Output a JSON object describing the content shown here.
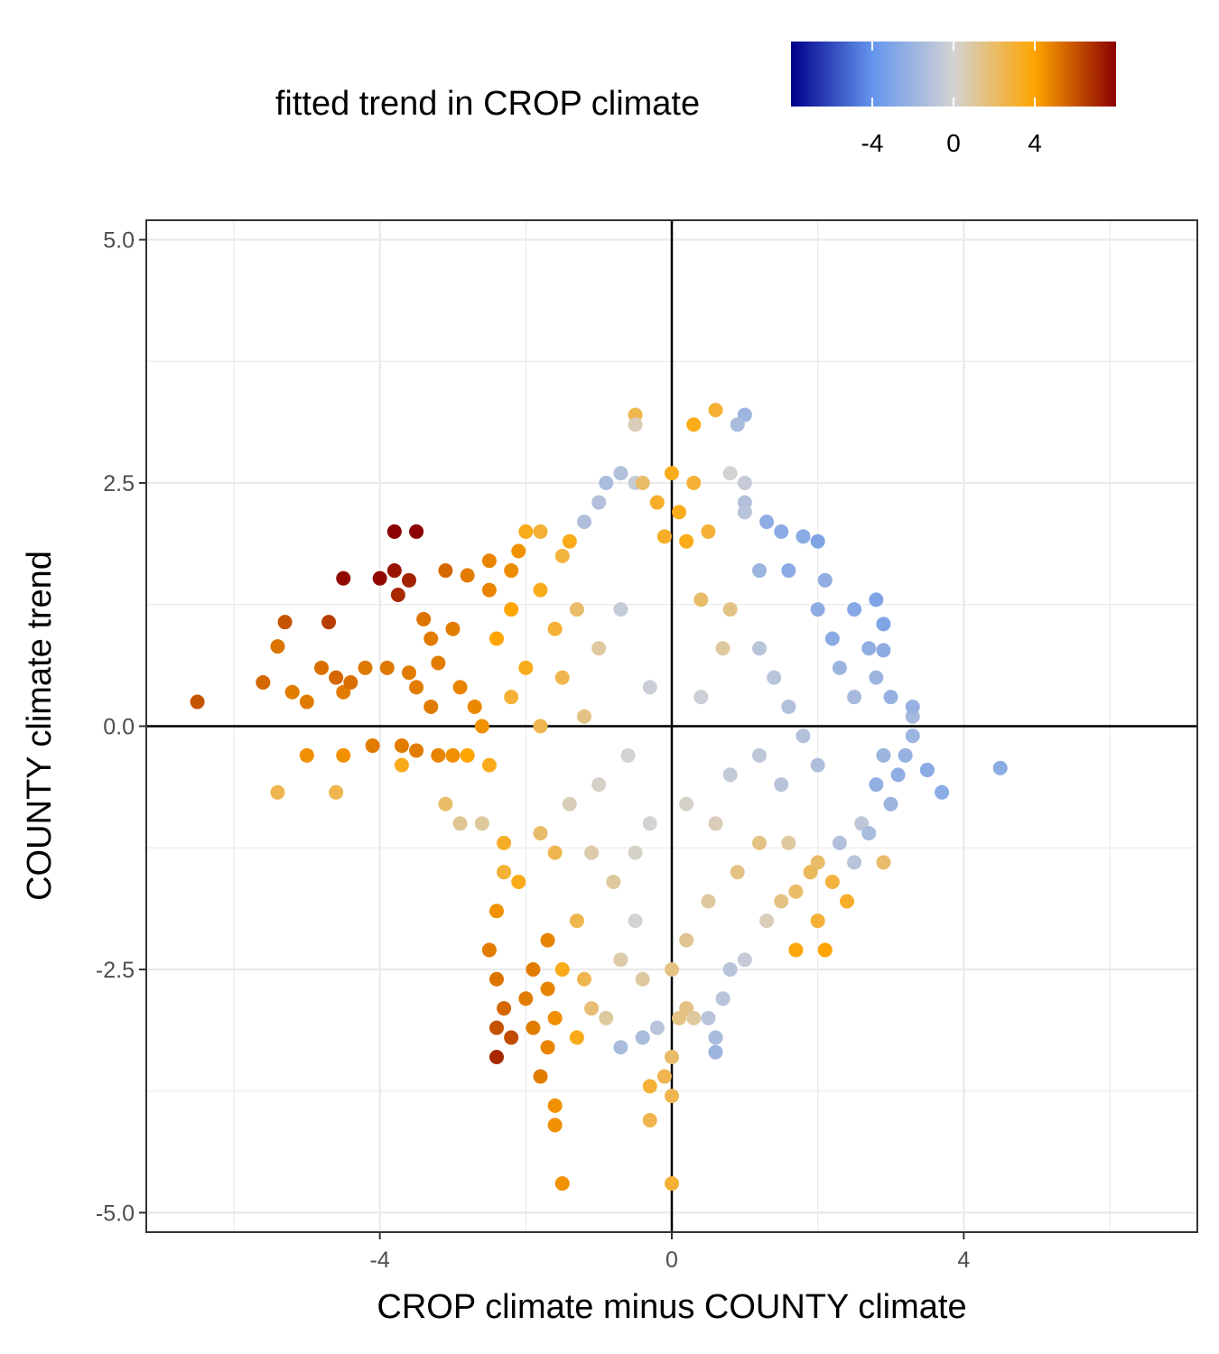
{
  "chart_data": {
    "type": "scatter",
    "title": "",
    "xlabel": "CROP climate minus COUNTY climate",
    "ylabel": "COUNTY climate trend",
    "xlim": [
      -7.2,
      7.2
    ],
    "ylim": [
      -5.2,
      5.2
    ],
    "x_ticks": [
      -4,
      0,
      4
    ],
    "y_ticks": [
      5.0,
      2.5,
      0.0,
      -2.5,
      -5.0
    ],
    "x_tick_labels": [
      "-4",
      "0",
      "4"
    ],
    "y_tick_labels": [
      "5.0",
      "2.5",
      "0.0",
      "-2.5",
      "-5.0"
    ],
    "grid": true,
    "reference_lines": {
      "x": 0,
      "y": 0
    },
    "color_legend": {
      "title": "fitted trend in CROP climate",
      "placement": "top",
      "range": [
        -8,
        8
      ],
      "ticks": [
        -4,
        0,
        4
      ],
      "tick_labels": [
        "-4",
        "0",
        "4"
      ],
      "colors": [
        "#00008b",
        "#6495ed",
        "#d3d3d3",
        "#ffa500",
        "#8b0000"
      ]
    },
    "series": [
      {
        "points": [
          [
            -6.5,
            0.25,
            6.0
          ],
          [
            -5.6,
            0.45,
            5.5
          ],
          [
            -5.4,
            0.82,
            5.2
          ],
          [
            -5.2,
            0.35,
            5.0
          ],
          [
            -5.0,
            0.25,
            5.0
          ],
          [
            -5.3,
            1.07,
            6.0
          ],
          [
            -4.7,
            1.07,
            6.5
          ],
          [
            -4.5,
            1.52,
            7.8
          ],
          [
            -4.0,
            1.52,
            7.8
          ],
          [
            -3.8,
            2.0,
            8.0
          ],
          [
            -3.5,
            2.0,
            8.0
          ],
          [
            -3.8,
            1.6,
            7.5
          ],
          [
            -3.6,
            1.5,
            7.2
          ],
          [
            -3.75,
            1.35,
            7.0
          ],
          [
            -4.6,
            0.5,
            5.5
          ],
          [
            -4.8,
            0.6,
            5.3
          ],
          [
            -4.5,
            0.35,
            5.0
          ],
          [
            -4.2,
            0.6,
            5.1
          ],
          [
            -3.9,
            0.6,
            5.1
          ],
          [
            -3.6,
            0.55,
            5.0
          ],
          [
            -4.1,
            -0.2,
            5.0
          ],
          [
            -3.7,
            -0.2,
            5.0
          ],
          [
            -3.5,
            -0.25,
            5.0
          ],
          [
            -3.2,
            -0.3,
            4.8
          ],
          [
            -3.0,
            -0.3,
            4.5
          ],
          [
            -5.0,
            -0.3,
            4.5
          ],
          [
            -4.5,
            -0.3,
            4.5
          ],
          [
            -5.4,
            -0.68,
            2.5
          ],
          [
            -4.6,
            -0.68,
            2.5
          ],
          [
            -3.7,
            -0.4,
            3.5
          ],
          [
            -3.3,
            0.2,
            5.0
          ],
          [
            -3.5,
            0.4,
            5.0
          ],
          [
            -3.3,
            0.9,
            5.0
          ],
          [
            -3.0,
            1.0,
            5.0
          ],
          [
            -3.1,
            1.6,
            5.5
          ],
          [
            -2.8,
            1.55,
            5.0
          ],
          [
            -2.5,
            1.4,
            4.8
          ],
          [
            -2.5,
            1.7,
            4.8
          ],
          [
            -2.2,
            1.6,
            4.6
          ],
          [
            -2.1,
            1.8,
            4.5
          ],
          [
            -2.0,
            2.0,
            3.5
          ],
          [
            -1.8,
            2.0,
            3.0
          ],
          [
            -1.5,
            1.75,
            2.8
          ],
          [
            -3.4,
            1.1,
            5.2
          ],
          [
            -3.2,
            0.65,
            5.0
          ],
          [
            -2.9,
            0.4,
            4.8
          ],
          [
            -2.7,
            0.2,
            4.7
          ],
          [
            -2.6,
            0.0,
            4.5
          ],
          [
            -2.8,
            -0.3,
            4.0
          ],
          [
            -2.5,
            -0.4,
            3.5
          ],
          [
            -3.1,
            -0.8,
            2.0
          ],
          [
            -2.9,
            -1.0,
            1.2
          ],
          [
            -2.6,
            -1.0,
            1.0
          ],
          [
            -2.3,
            -1.5,
            3.0
          ],
          [
            -2.3,
            -1.2,
            3.2
          ],
          [
            -1.8,
            -1.1,
            2.0
          ],
          [
            -1.6,
            -1.3,
            2.5
          ],
          [
            -2.1,
            -1.6,
            3.5
          ],
          [
            -2.4,
            -1.9,
            4.5
          ],
          [
            -2.5,
            -2.3,
            5.0
          ],
          [
            -2.4,
            -2.6,
            5.2
          ],
          [
            -2.3,
            -2.9,
            5.5
          ],
          [
            -2.4,
            -3.1,
            6.0
          ],
          [
            -2.2,
            -3.2,
            6.2
          ],
          [
            -2.4,
            -3.4,
            7.0
          ],
          [
            -2.0,
            -2.8,
            5.0
          ],
          [
            -1.9,
            -2.5,
            5.0
          ],
          [
            -1.7,
            -2.2,
            4.8
          ],
          [
            -1.7,
            -2.7,
            4.8
          ],
          [
            -1.6,
            -3.0,
            4.5
          ],
          [
            -1.9,
            -3.1,
            5.0
          ],
          [
            -1.7,
            -3.3,
            4.8
          ],
          [
            -1.8,
            -3.6,
            5.0
          ],
          [
            -1.6,
            -3.9,
            4.5
          ],
          [
            -1.6,
            -4.1,
            4.5
          ],
          [
            -1.5,
            -4.7,
            4.5
          ],
          [
            -1.3,
            -3.2,
            3.5
          ],
          [
            -1.1,
            -2.9,
            1.8
          ],
          [
            -0.9,
            -3.0,
            1.0
          ],
          [
            -0.5,
            -2.0,
            0.0
          ],
          [
            -0.7,
            -3.3,
            -1.5
          ],
          [
            -0.4,
            -3.2,
            -1.5
          ],
          [
            -0.2,
            -3.1,
            -1.0
          ],
          [
            -0.1,
            -3.6,
            2.5
          ],
          [
            -0.3,
            -3.7,
            3.0
          ],
          [
            0.0,
            -3.4,
            2.0
          ],
          [
            0.0,
            -3.8,
            2.5
          ],
          [
            -0.3,
            -4.05,
            2.5
          ],
          [
            0.0,
            -4.7,
            3.0
          ],
          [
            0.1,
            -3.0,
            1.5
          ],
          [
            0.2,
            -2.9,
            1.5
          ],
          [
            0.3,
            -3.0,
            1.0
          ],
          [
            0.5,
            -3.0,
            -1.0
          ],
          [
            0.6,
            -3.2,
            -1.5
          ],
          [
            0.6,
            -3.35,
            -2.0
          ],
          [
            0.7,
            -2.8,
            -1.0
          ],
          [
            0.8,
            -2.5,
            -1.0
          ],
          [
            1.0,
            -2.4,
            -0.5
          ],
          [
            1.3,
            -2.0,
            0.5
          ],
          [
            1.5,
            -1.8,
            1.5
          ],
          [
            1.7,
            -1.7,
            2.0
          ],
          [
            1.9,
            -1.5,
            2.3
          ],
          [
            2.0,
            -1.4,
            2.0
          ],
          [
            2.2,
            -1.6,
            2.8
          ],
          [
            2.4,
            -1.8,
            3.2
          ],
          [
            1.7,
            -2.3,
            3.8
          ],
          [
            2.1,
            -2.3,
            4.0
          ],
          [
            2.0,
            -2.0,
            3.0
          ],
          [
            2.6,
            -1.0,
            -0.8
          ],
          [
            2.9,
            -1.4,
            2.0
          ],
          [
            2.5,
            -1.4,
            -1.0
          ],
          [
            2.3,
            -1.2,
            -1.2
          ],
          [
            2.7,
            -1.1,
            -1.5
          ],
          [
            3.0,
            -0.8,
            -2.0
          ],
          [
            2.8,
            -0.6,
            -2.3
          ],
          [
            3.1,
            -0.5,
            -2.4
          ],
          [
            3.2,
            -0.3,
            -2.2
          ],
          [
            3.5,
            -0.45,
            -2.5
          ],
          [
            3.3,
            -0.1,
            -2.0
          ],
          [
            3.3,
            0.1,
            -1.6
          ],
          [
            3.3,
            0.2,
            -2.2
          ],
          [
            3.0,
            0.3,
            -2.2
          ],
          [
            2.8,
            0.5,
            -2.0
          ],
          [
            2.5,
            0.3,
            -1.6
          ],
          [
            2.9,
            0.78,
            -2.5
          ],
          [
            2.7,
            0.8,
            -2.4
          ],
          [
            2.3,
            0.6,
            -2.0
          ],
          [
            2.5,
            1.2,
            -2.8
          ],
          [
            2.9,
            1.05,
            -3.0
          ],
          [
            2.8,
            1.3,
            -3.0
          ],
          [
            2.2,
            0.9,
            -2.6
          ],
          [
            2.0,
            1.2,
            -2.5
          ],
          [
            2.1,
            1.5,
            -2.4
          ],
          [
            2.0,
            1.9,
            -3.0
          ],
          [
            1.8,
            1.95,
            -2.6
          ],
          [
            1.6,
            1.6,
            -2.6
          ],
          [
            1.5,
            2.0,
            -2.6
          ],
          [
            1.3,
            2.1,
            -2.5
          ],
          [
            1.2,
            1.6,
            -2.0
          ],
          [
            1.0,
            2.3,
            -1.2
          ],
          [
            1.0,
            2.2,
            -1.0
          ],
          [
            1.0,
            2.5,
            -0.5
          ],
          [
            1.0,
            3.2,
            -2.0
          ],
          [
            0.9,
            3.1,
            -1.5
          ],
          [
            0.6,
            3.25,
            3.0
          ],
          [
            0.3,
            3.1,
            3.5
          ],
          [
            -0.5,
            3.2,
            2.5
          ],
          [
            -0.5,
            3.1,
            0.5
          ],
          [
            -0.9,
            2.5,
            -1.5
          ],
          [
            -0.7,
            2.6,
            -1.2
          ],
          [
            -0.5,
            2.5,
            -0.5
          ],
          [
            -0.4,
            2.5,
            2.0
          ],
          [
            0.0,
            2.6,
            3.5
          ],
          [
            0.3,
            2.5,
            3.0
          ],
          [
            0.8,
            2.6,
            0.0
          ],
          [
            -1.0,
            2.3,
            -1.2
          ],
          [
            -1.2,
            2.1,
            -1.3
          ],
          [
            -0.2,
            2.3,
            3.2
          ],
          [
            0.1,
            2.2,
            3.5
          ],
          [
            0.5,
            2.0,
            3.0
          ],
          [
            0.2,
            1.9,
            3.5
          ],
          [
            -0.1,
            1.95,
            3.3
          ],
          [
            -1.4,
            1.9,
            3.5
          ],
          [
            -4.4,
            0.45,
            5.3
          ],
          [
            4.5,
            -0.43,
            -2.6
          ],
          [
            3.7,
            -0.68,
            -2.6
          ],
          [
            3.5,
            -0.45,
            -2.6
          ],
          [
            2.9,
            -0.3,
            -2.0
          ],
          [
            -1.3,
            1.2,
            2.0
          ],
          [
            -2.2,
            1.2,
            4.0
          ],
          [
            -1.8,
            1.4,
            3.5
          ],
          [
            -2.4,
            0.9,
            4.0
          ],
          [
            -2.0,
            0.6,
            3.5
          ],
          [
            -1.6,
            1.0,
            3.0
          ],
          [
            -2.2,
            0.3,
            3.0
          ],
          [
            -1.5,
            0.5,
            2.5
          ],
          [
            -1.0,
            0.8,
            1.0
          ],
          [
            -1.8,
            0.0,
            2.5
          ],
          [
            -1.2,
            0.1,
            1.5
          ],
          [
            -0.7,
            1.2,
            -0.5
          ],
          [
            0.4,
            1.3,
            2.0
          ],
          [
            0.8,
            1.2,
            1.5
          ],
          [
            0.7,
            0.8,
            1.0
          ],
          [
            1.2,
            0.8,
            -1.0
          ],
          [
            1.4,
            0.5,
            -1.0
          ],
          [
            1.6,
            0.2,
            -1.2
          ],
          [
            1.8,
            -0.1,
            -1.2
          ],
          [
            2.0,
            -0.4,
            -1.3
          ],
          [
            1.5,
            -0.6,
            -1.0
          ],
          [
            1.2,
            -0.3,
            -0.8
          ],
          [
            0.8,
            -0.5,
            -0.6
          ],
          [
            0.4,
            0.3,
            -0.3
          ],
          [
            -0.3,
            0.4,
            -0.4
          ],
          [
            -0.6,
            -0.3,
            0.0
          ],
          [
            -1.0,
            -0.6,
            0.2
          ],
          [
            -1.4,
            -0.8,
            0.5
          ],
          [
            -1.1,
            -1.3,
            0.8
          ],
          [
            -0.8,
            -1.6,
            1.0
          ],
          [
            -1.3,
            -2.0,
            2.5
          ],
          [
            -1.5,
            -2.5,
            3.5
          ],
          [
            -1.2,
            -2.6,
            2.5
          ],
          [
            -0.7,
            -2.4,
            0.8
          ],
          [
            -0.4,
            -2.6,
            1.0
          ],
          [
            0.0,
            -2.5,
            1.5
          ],
          [
            0.2,
            -2.2,
            1.2
          ],
          [
            0.5,
            -1.8,
            1.0
          ],
          [
            0.9,
            -1.5,
            1.5
          ],
          [
            1.2,
            -1.2,
            1.5
          ],
          [
            1.6,
            -1.2,
            1.0
          ],
          [
            0.6,
            -1.0,
            0.5
          ],
          [
            0.2,
            -0.8,
            0.2
          ],
          [
            -0.3,
            -1.0,
            0.0
          ],
          [
            -0.5,
            -1.3,
            0.2
          ]
        ]
      }
    ]
  }
}
